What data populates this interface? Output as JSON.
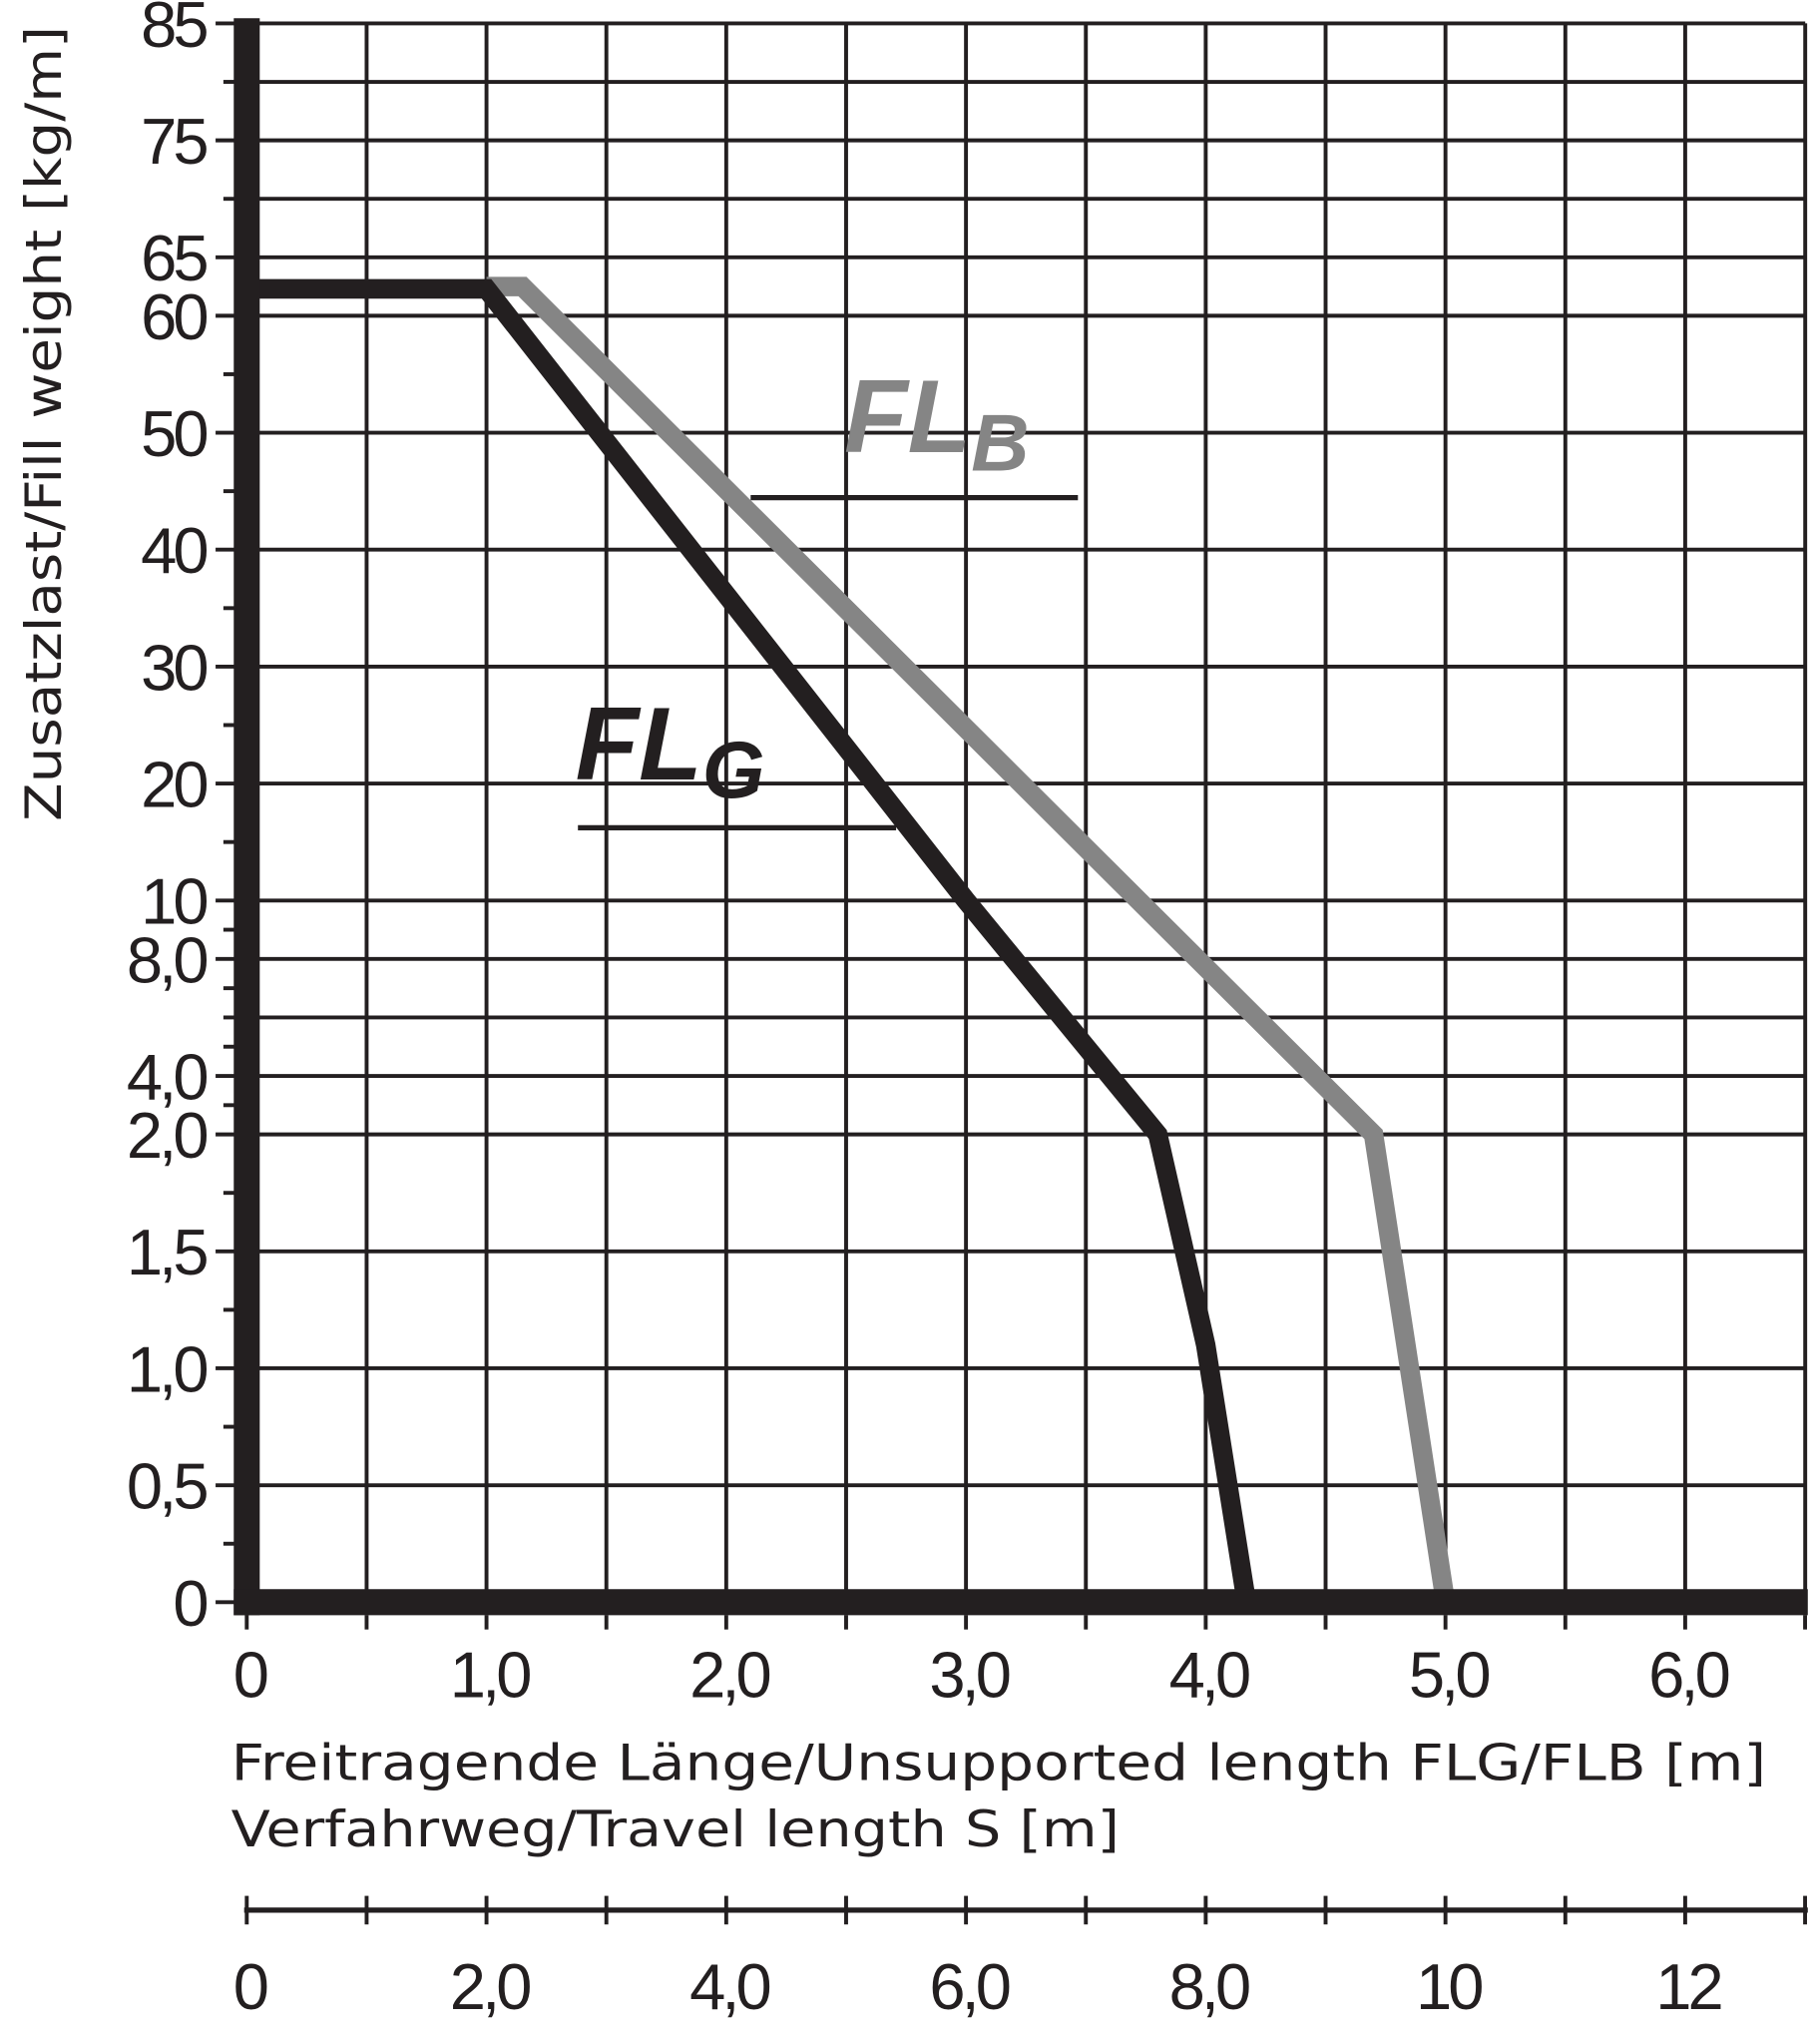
{
  "chart_data": {
    "type": "line",
    "ylabel": "Zusatzlast/Fill weight [kg/m]",
    "xlabel": "Freitragende Länge/Unsupported length FLG/FLB [m]",
    "xlabel2": "Verfahrweg/Travel length S [m]",
    "xlim": [
      0,
      6.5
    ],
    "x2lim": [
      0,
      13
    ],
    "ylim": [
      0,
      85
    ],
    "y_scale": "piecewise (0–2 fine, 2–10 medium, 10–85 coarse)",
    "grid": true,
    "x_ticks": [
      {
        "value": 0,
        "label": "0"
      },
      {
        "value": 1,
        "label": "1,0"
      },
      {
        "value": 2,
        "label": "2,0"
      },
      {
        "value": 3,
        "label": "3,0"
      },
      {
        "value": 4,
        "label": "4,0"
      },
      {
        "value": 5,
        "label": "5,0"
      },
      {
        "value": 6,
        "label": "6,0"
      }
    ],
    "x2_ticks": [
      {
        "value": 0,
        "label": "0"
      },
      {
        "value": 2,
        "label": "2,0"
      },
      {
        "value": 4,
        "label": "4,0"
      },
      {
        "value": 6,
        "label": "6,0"
      },
      {
        "value": 8,
        "label": "8,0"
      },
      {
        "value": 10,
        "label": "10"
      },
      {
        "value": 12,
        "label": "12"
      }
    ],
    "y_ticks": [
      {
        "value": 0,
        "label": "0"
      },
      {
        "value": 0.5,
        "label": "0,5"
      },
      {
        "value": 1,
        "label": "1,0"
      },
      {
        "value": 1.5,
        "label": "1,5"
      },
      {
        "value": 2,
        "label": "2,0"
      },
      {
        "value": 4,
        "label": "4,0"
      },
      {
        "value": 8,
        "label": "8,0"
      },
      {
        "value": 10,
        "label": "10"
      },
      {
        "value": 20,
        "label": "20"
      },
      {
        "value": 30,
        "label": "30"
      },
      {
        "value": 40,
        "label": "40"
      },
      {
        "value": 50,
        "label": "50"
      },
      {
        "value": 60,
        "label": "60"
      },
      {
        "value": 65,
        "label": "65"
      },
      {
        "value": 75,
        "label": "75"
      },
      {
        "value": 85,
        "label": "85"
      }
    ],
    "y_grid": [
      0,
      0.5,
      1,
      1.5,
      2,
      4,
      6,
      8,
      10,
      20,
      30,
      40,
      50,
      60,
      65,
      70,
      75,
      80,
      85
    ],
    "y_minor": [
      0.25,
      0.75,
      1.25,
      1.75,
      3,
      5,
      7,
      9,
      15,
      25,
      35,
      45,
      55
    ],
    "series": [
      {
        "name": "FLB",
        "label_main": "FL",
        "label_sub": "B",
        "color": "#858585",
        "points": [
          [
            1.0,
            62.5
          ],
          [
            1.15,
            62.5
          ],
          [
            3.72,
            10
          ],
          [
            4.7,
            2.0
          ],
          [
            5.0,
            0
          ]
        ]
      },
      {
        "name": "FLG",
        "label_main": "FL",
        "label_sub": "G",
        "color": "#231f20",
        "points": [
          [
            0,
            62.3
          ],
          [
            1.0,
            62.3
          ],
          [
            3.0,
            10
          ],
          [
            3.8,
            2.0
          ],
          [
            4.0,
            1.1
          ],
          [
            4.17,
            0
          ]
        ]
      }
    ]
  }
}
